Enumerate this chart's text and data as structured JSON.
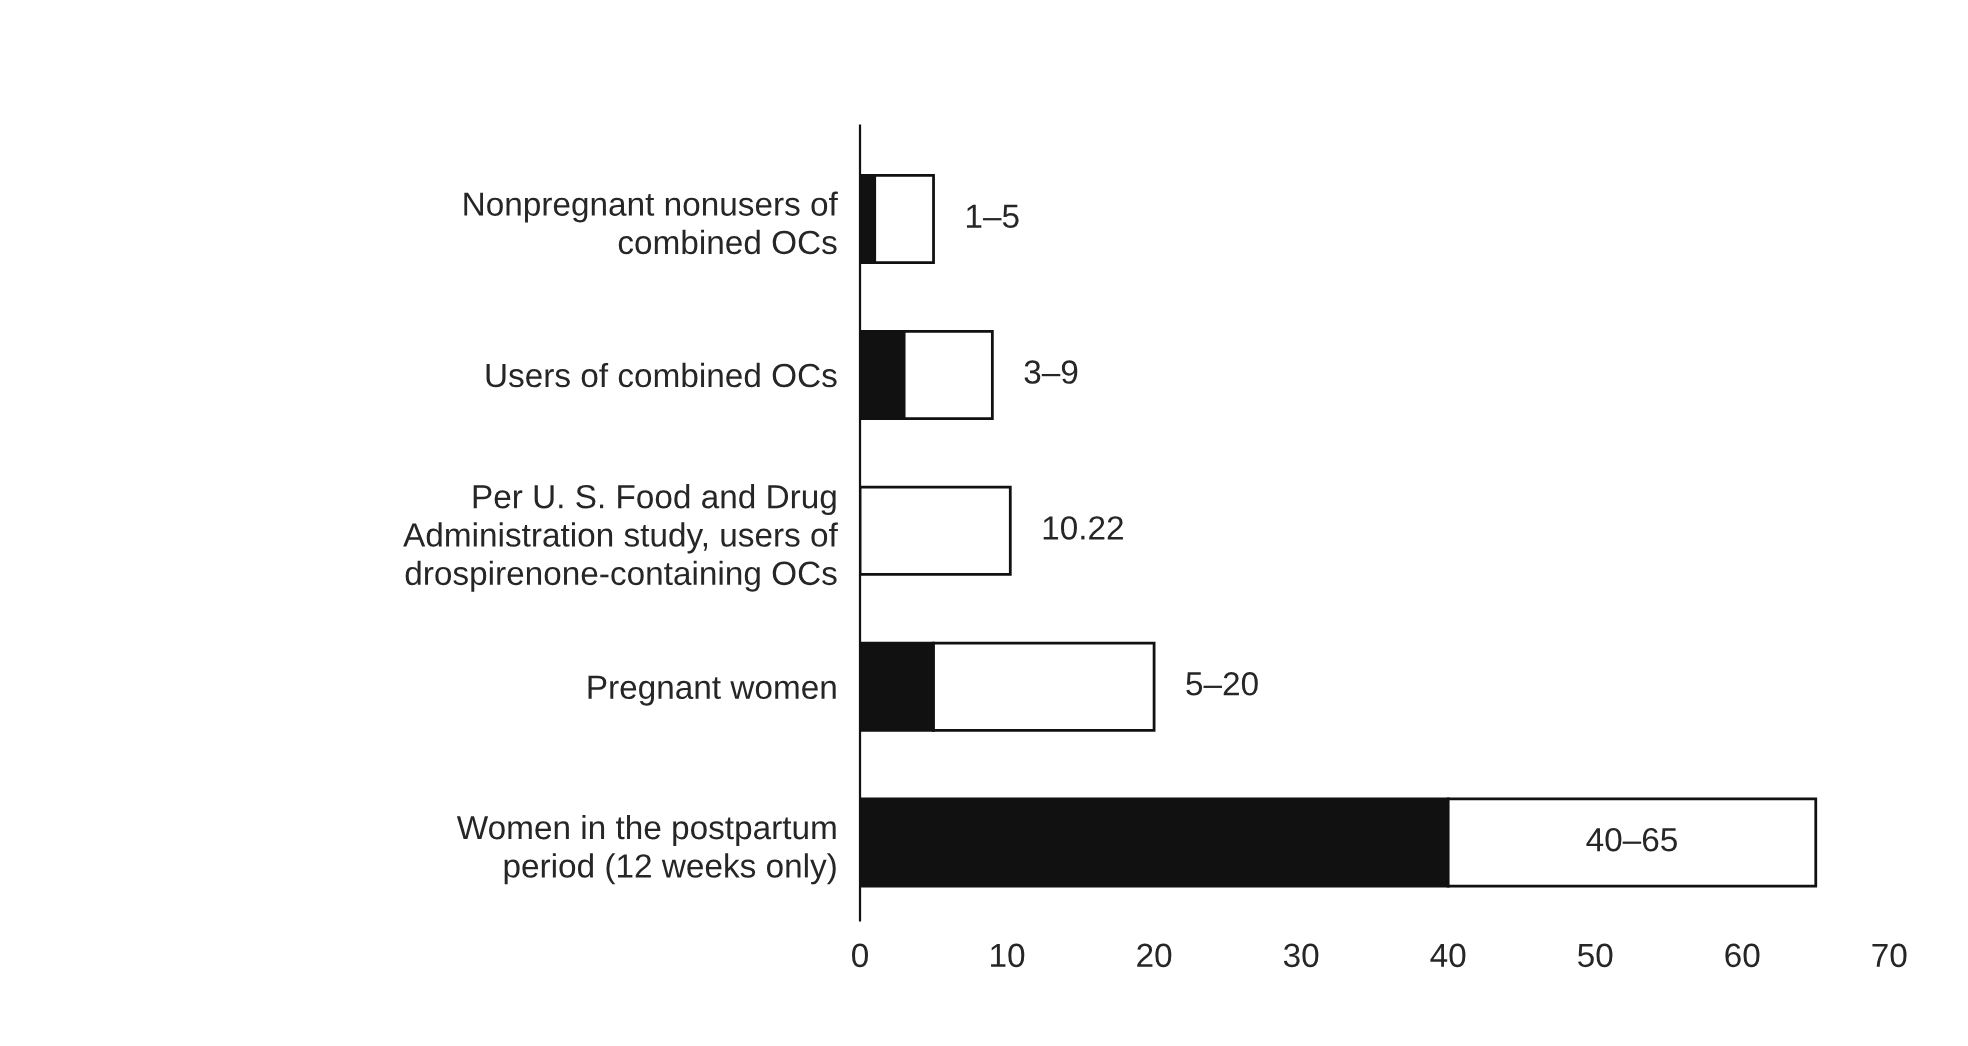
{
  "chart_data": {
    "type": "bar",
    "orientation": "horizontal",
    "stacked": true,
    "categories": [
      "Nonpregnant nonusers of\ncombined OCs",
      "Users of combined OCs",
      "Per U. S. Food and Drug\nAdministration study, users of\ndrospirenone-containing OCs",
      "Pregnant women",
      "Women in the postpartum\nperiod (12 weeks only)"
    ],
    "series": [
      {
        "color": "#111111",
        "values": [
          1,
          3,
          null,
          5,
          40
        ]
      },
      {
        "color": "#ffffff",
        "values": [
          4,
          6,
          10.22,
          15,
          25
        ],
        "value_labels": [
          "1–5",
          "3–9",
          "10.22",
          "5–20",
          "40–65"
        ]
      }
    ],
    "xlim": [
      0,
      70
    ],
    "xticks": [
      0,
      10,
      20,
      30,
      40,
      50,
      60,
      70
    ],
    "grid": false,
    "legend": false
  }
}
